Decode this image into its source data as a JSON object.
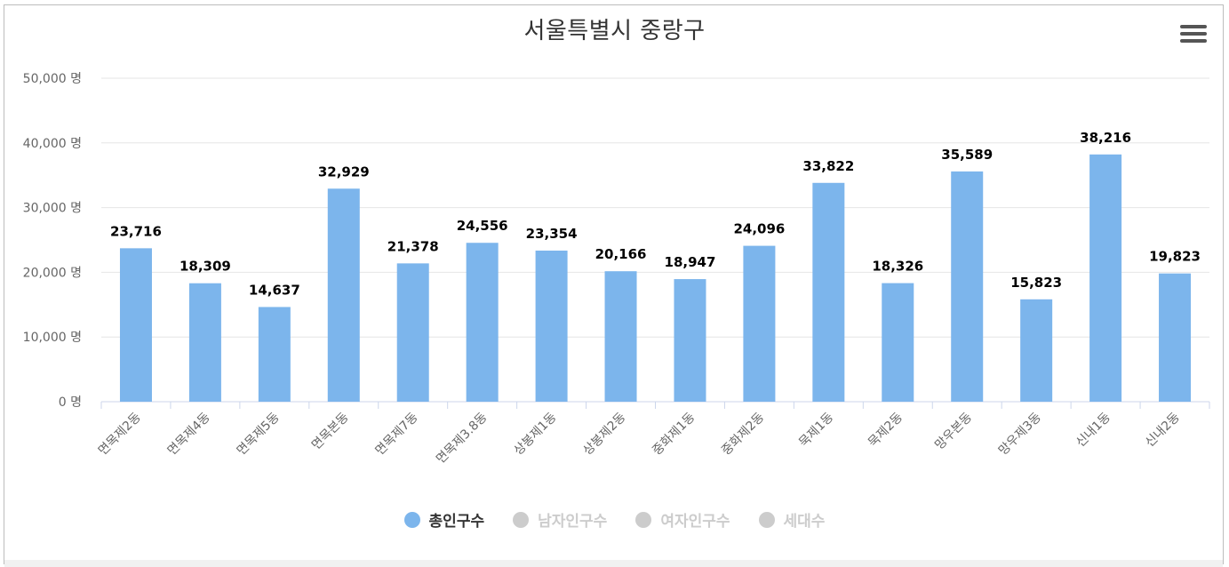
{
  "chart_data": {
    "type": "bar",
    "title": "서울특별시 중랑구",
    "categories": [
      "면목제2동",
      "면목제4동",
      "면목제5동",
      "면목본동",
      "면목제7동",
      "면목제3.8동",
      "상봉제1동",
      "상봉제2동",
      "중화제1동",
      "중화제2동",
      "묵제1동",
      "묵제2동",
      "망우본동",
      "망우제3동",
      "신내1동",
      "신내2동"
    ],
    "series": [
      {
        "name": "총인구수",
        "values": [
          23716,
          18309,
          14637,
          32929,
          21378,
          24556,
          23354,
          20166,
          18947,
          24096,
          33822,
          18326,
          35589,
          15823,
          38216,
          19823
        ]
      }
    ],
    "data_labels": [
      "23,716",
      "18,309",
      "14,637",
      "32,929",
      "21,378",
      "24,556",
      "23,354",
      "20,166",
      "18,947",
      "24,096",
      "33,822",
      "18,326",
      "35,589",
      "15,823",
      "38,216",
      "19,823"
    ],
    "ylim": [
      0,
      50000
    ],
    "yticks": [
      0,
      10000,
      20000,
      30000,
      40000,
      50000
    ],
    "ytick_labels": [
      "0 명",
      "10,000 명",
      "20,000 명",
      "30,000 명",
      "40,000 명",
      "50,000 명"
    ],
    "grid": true,
    "bar_color": "#7cb5ec",
    "legend_position": "bottom-center",
    "legend": [
      {
        "label": "총인구수",
        "color": "#7cb5ec",
        "active": true
      },
      {
        "label": "남자인구수",
        "color": "#cccccc",
        "active": false
      },
      {
        "label": "여자인구수",
        "color": "#cccccc",
        "active": false
      },
      {
        "label": "세대수",
        "color": "#cccccc",
        "active": false
      }
    ]
  },
  "menu": {
    "icon": "hamburger-menu-icon"
  }
}
